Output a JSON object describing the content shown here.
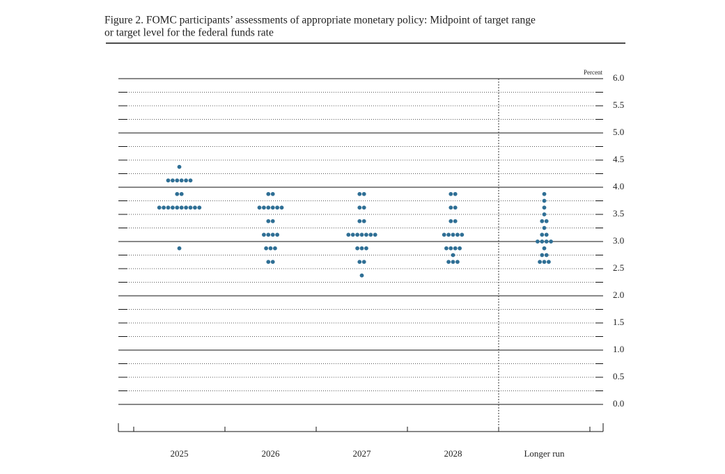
{
  "chart_data": {
    "type": "dot",
    "title": [
      "Figure 2. FOMC participants’ assessments of appropriate monetary policy: Midpoint of target range",
      "or target level for the federal funds rate"
    ],
    "unit_label": "Percent",
    "categories": [
      "2025",
      "2026",
      "2027",
      "2028",
      "Longer run"
    ],
    "values": [
      [
        4.375,
        4.125,
        4.125,
        4.125,
        4.125,
        4.125,
        4.125,
        3.875,
        3.875,
        3.625,
        3.625,
        3.625,
        3.625,
        3.625,
        3.625,
        3.625,
        3.625,
        3.625,
        3.625,
        2.875
      ],
      [
        3.875,
        3.875,
        3.625,
        3.625,
        3.625,
        3.625,
        3.625,
        3.625,
        3.375,
        3.375,
        3.125,
        3.125,
        3.125,
        3.125,
        2.875,
        2.875,
        2.875,
        2.625,
        2.625
      ],
      [
        3.875,
        3.875,
        3.625,
        3.625,
        3.375,
        3.375,
        3.125,
        3.125,
        3.125,
        3.125,
        3.125,
        3.125,
        3.125,
        2.875,
        2.875,
        2.875,
        2.625,
        2.625,
        2.375
      ],
      [
        3.875,
        3.875,
        3.625,
        3.625,
        3.375,
        3.375,
        3.125,
        3.125,
        3.125,
        3.125,
        3.125,
        2.875,
        2.875,
        2.875,
        2.875,
        2.75,
        2.625,
        2.625,
        2.625
      ],
      [
        3.875,
        3.75,
        3.625,
        3.5,
        3.375,
        3.375,
        3.25,
        3.125,
        3.125,
        3.0,
        3.0,
        3.0,
        3.0,
        2.875,
        2.75,
        2.75,
        2.625,
        2.625,
        2.625
      ]
    ],
    "color": "#2f6f95",
    "ylim": [
      -0.5,
      6.0
    ],
    "yticks": [
      {
        "value": 0,
        "label": "0.0"
      },
      0.5,
      {
        "value": 1,
        "label": "1.0"
      },
      1.5,
      {
        "value": 2,
        "label": "2.0"
      },
      2.5,
      {
        "value": 3,
        "label": "3.0"
      },
      3.5,
      {
        "value": 4,
        "label": "4.0"
      },
      4.5,
      {
        "value": 5,
        "label": "5.0"
      },
      5.5,
      {
        "value": 6,
        "label": "6.0"
      }
    ],
    "minor_yticks": [
      0.25,
      0.75,
      1.25,
      1.75,
      2.25,
      2.75,
      3.25,
      3.75,
      4.25,
      4.75,
      5.25,
      5.75
    ],
    "grid": true
  }
}
